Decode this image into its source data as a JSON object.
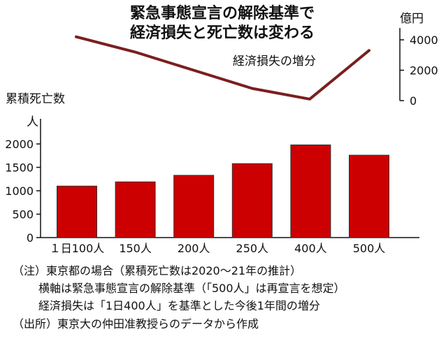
{
  "title": [
    "緊急事態宣言の解除基準で",
    "経済損失と死亡数は変わる"
  ],
  "chart_data": {
    "type": "bar",
    "categories": [
      "１日100人",
      "150人",
      "200人",
      "250人",
      "400人",
      "500人"
    ],
    "series": [
      {
        "name": "累積死亡数",
        "values": [
          1100,
          1190,
          1330,
          1580,
          1980,
          1760
        ]
      }
    ],
    "ylabel": "累積死亡数",
    "yunit": "人",
    "ylim": [
      0,
      2000
    ],
    "yticks": [
      0,
      500,
      1000,
      1500,
      2000
    ],
    "bar_color": "#cc0000",
    "line_series": {
      "name": "経済損失の増分",
      "unit": "億円",
      "values": [
        4200,
        3200,
        2000,
        800,
        100,
        3300
      ],
      "ylim": [
        0,
        4500
      ],
      "yticks": [
        0,
        2000,
        4000
      ],
      "color": "#7a1f1f"
    },
    "grid": false
  },
  "notes": [
    "（注）東京都の場合（累積死亡数は2020～21年の推計）",
    "横軸は緊急事態宣言の解除基準（「500人」は再宣言を想定）",
    "経済損失は「1日400人」を基準とした今後1年間の増分",
    "（出所）東京大の仲田准教授らのデータから作成"
  ]
}
